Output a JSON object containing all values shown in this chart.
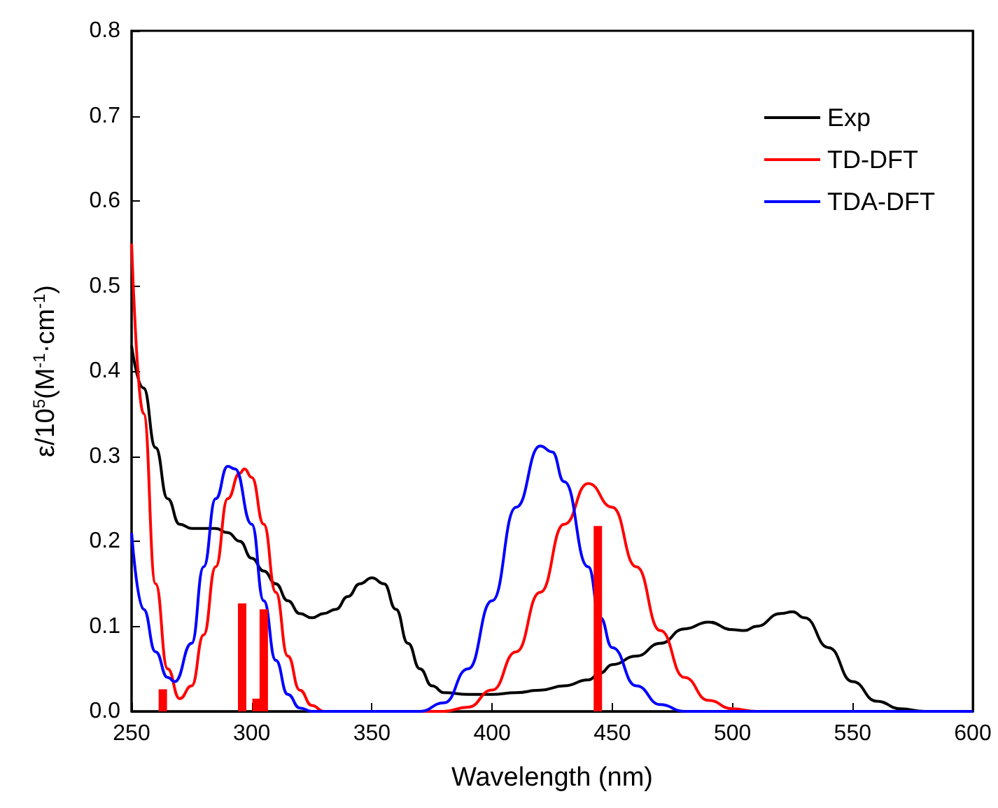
{
  "chart_data": {
    "type": "line",
    "xlabel": "Wavelength (nm)",
    "ylabel": "ε/10$^{5}$(M$^{-1}$·cm$^{-1}$)",
    "xlim": [
      250,
      600
    ],
    "xticks": [
      250,
      300,
      350,
      400,
      450,
      500,
      550,
      600
    ],
    "ylim": [
      0,
      0.8
    ],
    "yticks": [
      {
        "value": 0,
        "label": "0.0"
      },
      0.1,
      0.2,
      0.3,
      0.4,
      0.5,
      0.6,
      0.7,
      0.8
    ],
    "legend": "top right",
    "grid": false,
    "marker": "none",
    "line_style": "solid",
    "series": [
      {
        "name": "Exp",
        "color": "#000000",
        "x": [
          250,
          255,
          260,
          265,
          270,
          275,
          280,
          285,
          290,
          295,
          300,
          305,
          310,
          315,
          320,
          325,
          330,
          335,
          340,
          345,
          350,
          355,
          360,
          365,
          370,
          375,
          380,
          390,
          400,
          410,
          420,
          430,
          440,
          445,
          450,
          460,
          470,
          480,
          490,
          500,
          505,
          510,
          520,
          525,
          530,
          540,
          550,
          560,
          570,
          580,
          600
        ],
        "values": [
          0.43,
          0.38,
          0.31,
          0.25,
          0.22,
          0.215,
          0.215,
          0.215,
          0.21,
          0.2,
          0.18,
          0.165,
          0.15,
          0.13,
          0.115,
          0.11,
          0.115,
          0.12,
          0.135,
          0.15,
          0.157,
          0.15,
          0.12,
          0.08,
          0.05,
          0.03,
          0.022,
          0.02,
          0.02,
          0.022,
          0.025,
          0.03,
          0.037,
          0.045,
          0.055,
          0.065,
          0.08,
          0.097,
          0.105,
          0.096,
          0.095,
          0.1,
          0.115,
          0.117,
          0.11,
          0.075,
          0.035,
          0.012,
          0.003,
          0,
          0
        ]
      },
      {
        "name": "TD-DFT",
        "color": "#ff0000",
        "x": [
          250,
          255,
          260,
          265,
          270,
          275,
          280,
          285,
          290,
          295,
          297,
          300,
          305,
          310,
          315,
          320,
          325,
          330,
          380,
          390,
          400,
          410,
          420,
          430,
          440,
          450,
          460,
          470,
          480,
          490,
          500,
          510,
          600
        ],
        "values": [
          0.55,
          0.35,
          0.15,
          0.05,
          0.015,
          0.03,
          0.09,
          0.17,
          0.25,
          0.28,
          0.285,
          0.275,
          0.22,
          0.14,
          0.065,
          0.025,
          0.007,
          0,
          0,
          0.005,
          0.025,
          0.07,
          0.14,
          0.22,
          0.268,
          0.24,
          0.17,
          0.095,
          0.04,
          0.013,
          0.003,
          0,
          0
        ]
      },
      {
        "name": "TDA-DFT",
        "color": "#0000ff",
        "x": [
          250,
          255,
          260,
          265,
          268,
          275,
          280,
          285,
          290,
          293,
          300,
          305,
          310,
          315,
          320,
          325,
          370,
          380,
          390,
          400,
          410,
          420,
          425,
          430,
          440,
          445,
          450,
          460,
          470,
          480,
          600
        ],
        "values": [
          0.21,
          0.12,
          0.07,
          0.04,
          0.035,
          0.08,
          0.17,
          0.25,
          0.288,
          0.285,
          0.22,
          0.13,
          0.06,
          0.02,
          0.004,
          0,
          0,
          0.01,
          0.05,
          0.13,
          0.24,
          0.312,
          0.305,
          0.27,
          0.17,
          0.11,
          0.075,
          0.03,
          0.008,
          0,
          0
        ]
      },
      {
        "type": "bar",
        "color": "#ff0000",
        "x": [
          263,
          296,
          302,
          305,
          444
        ],
        "values": [
          0.026,
          0.127,
          0.015,
          0.12,
          0.218
        ]
      }
    ]
  }
}
